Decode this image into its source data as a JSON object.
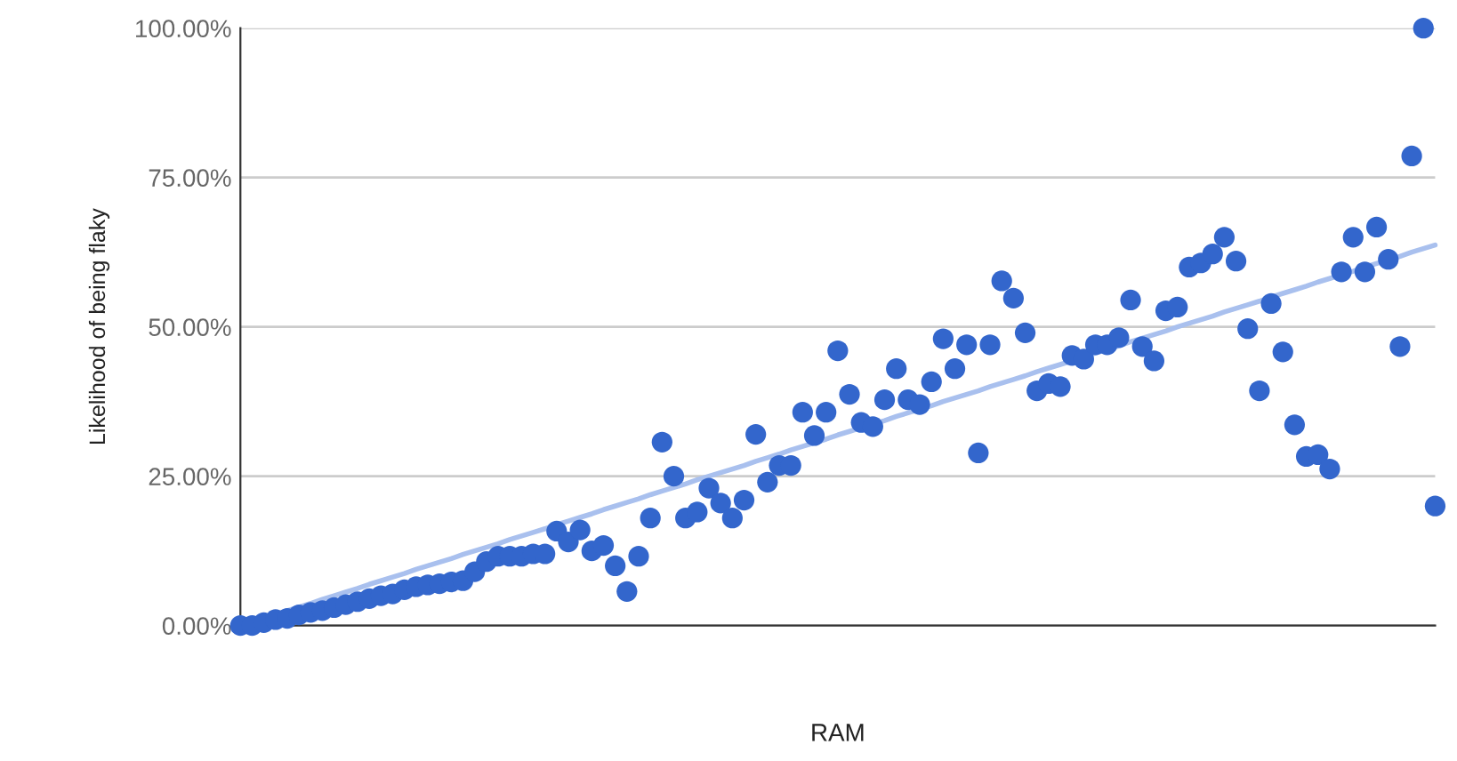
{
  "chart_data": {
    "type": "scatter",
    "xlabel": "RAM",
    "ylabel": "Likelihood of being flaky",
    "categories": [
      null,
      null,
      null,
      null,
      null,
      null,
      null,
      null,
      null,
      null,
      null,
      null,
      null,
      null,
      null,
      null,
      null,
      null,
      null,
      null,
      null,
      null,
      null,
      null,
      null,
      null,
      null,
      null,
      null,
      null,
      null,
      null,
      null,
      null,
      null,
      null,
      null,
      null,
      null,
      null,
      null,
      null,
      null,
      null,
      null,
      null,
      null,
      null,
      null,
      null,
      null,
      null,
      null,
      null,
      null,
      null,
      null,
      null,
      null,
      null,
      null,
      null,
      null,
      null,
      null,
      null,
      null,
      null,
      null,
      null,
      null,
      null,
      null,
      null,
      null,
      null,
      null,
      null,
      null,
      null,
      null,
      null,
      null,
      null,
      null,
      null,
      null,
      null,
      null,
      null,
      null,
      null,
      null,
      null,
      null,
      null,
      null,
      null,
      null,
      null,
      null,
      null,
      null
    ],
    "series": [
      {
        "color": "#3366cc",
        "marker": "circle",
        "values": [
          0,
          0,
          0.5,
          1,
          1.2,
          1.8,
          2.2,
          2.5,
          3,
          3.5,
          4,
          4.5,
          5,
          5.3,
          6,
          6.5,
          6.8,
          7,
          7.3,
          7.5,
          9,
          10.7,
          11.6,
          11.6,
          11.6,
          12,
          12,
          15.8,
          14,
          16,
          12.5,
          13.4,
          10,
          5.7,
          11.6,
          18,
          30.7,
          25,
          18,
          19,
          23,
          20.5,
          18,
          21,
          32,
          24,
          26.8,
          26.8,
          35.7,
          31.8,
          35.7,
          46,
          38.7,
          34,
          33.3,
          37.8,
          43,
          37.8,
          37,
          40.8,
          48,
          43,
          47,
          28.9,
          47,
          57.7,
          54.8,
          49,
          39.3,
          40.5,
          40,
          45.2,
          44.6,
          47,
          47,
          48.2,
          54.5,
          46.7,
          44.3,
          52.7,
          53.3,
          60,
          60.7,
          62.2,
          65,
          61,
          49.7,
          39.3,
          53.9,
          45.8,
          33.6,
          28.3,
          28.6,
          26.2,
          59.2,
          65,
          59.2,
          66.7,
          61.3,
          46.7,
          78.6,
          100,
          20
        ]
      },
      {
        "type": "line",
        "color": "#a9c0ee",
        "values": [
          0,
          0.6,
          1.2,
          1.9,
          2.5,
          3.1,
          3.7,
          4.4,
          5,
          5.6,
          6.2,
          6.9,
          7.5,
          8.1,
          8.7,
          9.4,
          10,
          10.6,
          11.2,
          11.9,
          12.5,
          13.1,
          13.7,
          14.4,
          15,
          15.6,
          16.2,
          16.9,
          17.5,
          18.1,
          18.7,
          19.4,
          20,
          20.6,
          21.2,
          21.9,
          22.5,
          23.1,
          23.7,
          24.4,
          25,
          25.6,
          26.2,
          26.8,
          27.5,
          28.1,
          28.7,
          29.4,
          30,
          30.6,
          31.2,
          31.9,
          32.5,
          33.1,
          33.7,
          34.3,
          35,
          35.6,
          36.2,
          36.8,
          37.5,
          38.1,
          38.7,
          39.3,
          40,
          40.6,
          41.2,
          41.8,
          42.5,
          43.1,
          43.7,
          44.3,
          45,
          45.6,
          46.2,
          46.8,
          47.5,
          48.1,
          48.7,
          49.3,
          50,
          50.6,
          51.2,
          51.8,
          52.5,
          53.1,
          53.7,
          54.3,
          55,
          55.6,
          56.2,
          56.8,
          57.5,
          58.1,
          58.7,
          59.3,
          60,
          60.6,
          61.2,
          61.8,
          62.5,
          63.1,
          63.7
        ]
      }
    ],
    "ylim": [
      0,
      100
    ],
    "yticks": [
      {
        "value": 0,
        "label": "0.00%"
      },
      {
        "value": 25,
        "label": "25.00%"
      },
      {
        "value": 50,
        "label": "50.00%"
      },
      {
        "value": 75,
        "label": "75.00%"
      },
      {
        "value": 100,
        "label": "100.00%"
      }
    ],
    "grid": "y",
    "legend": false
  }
}
